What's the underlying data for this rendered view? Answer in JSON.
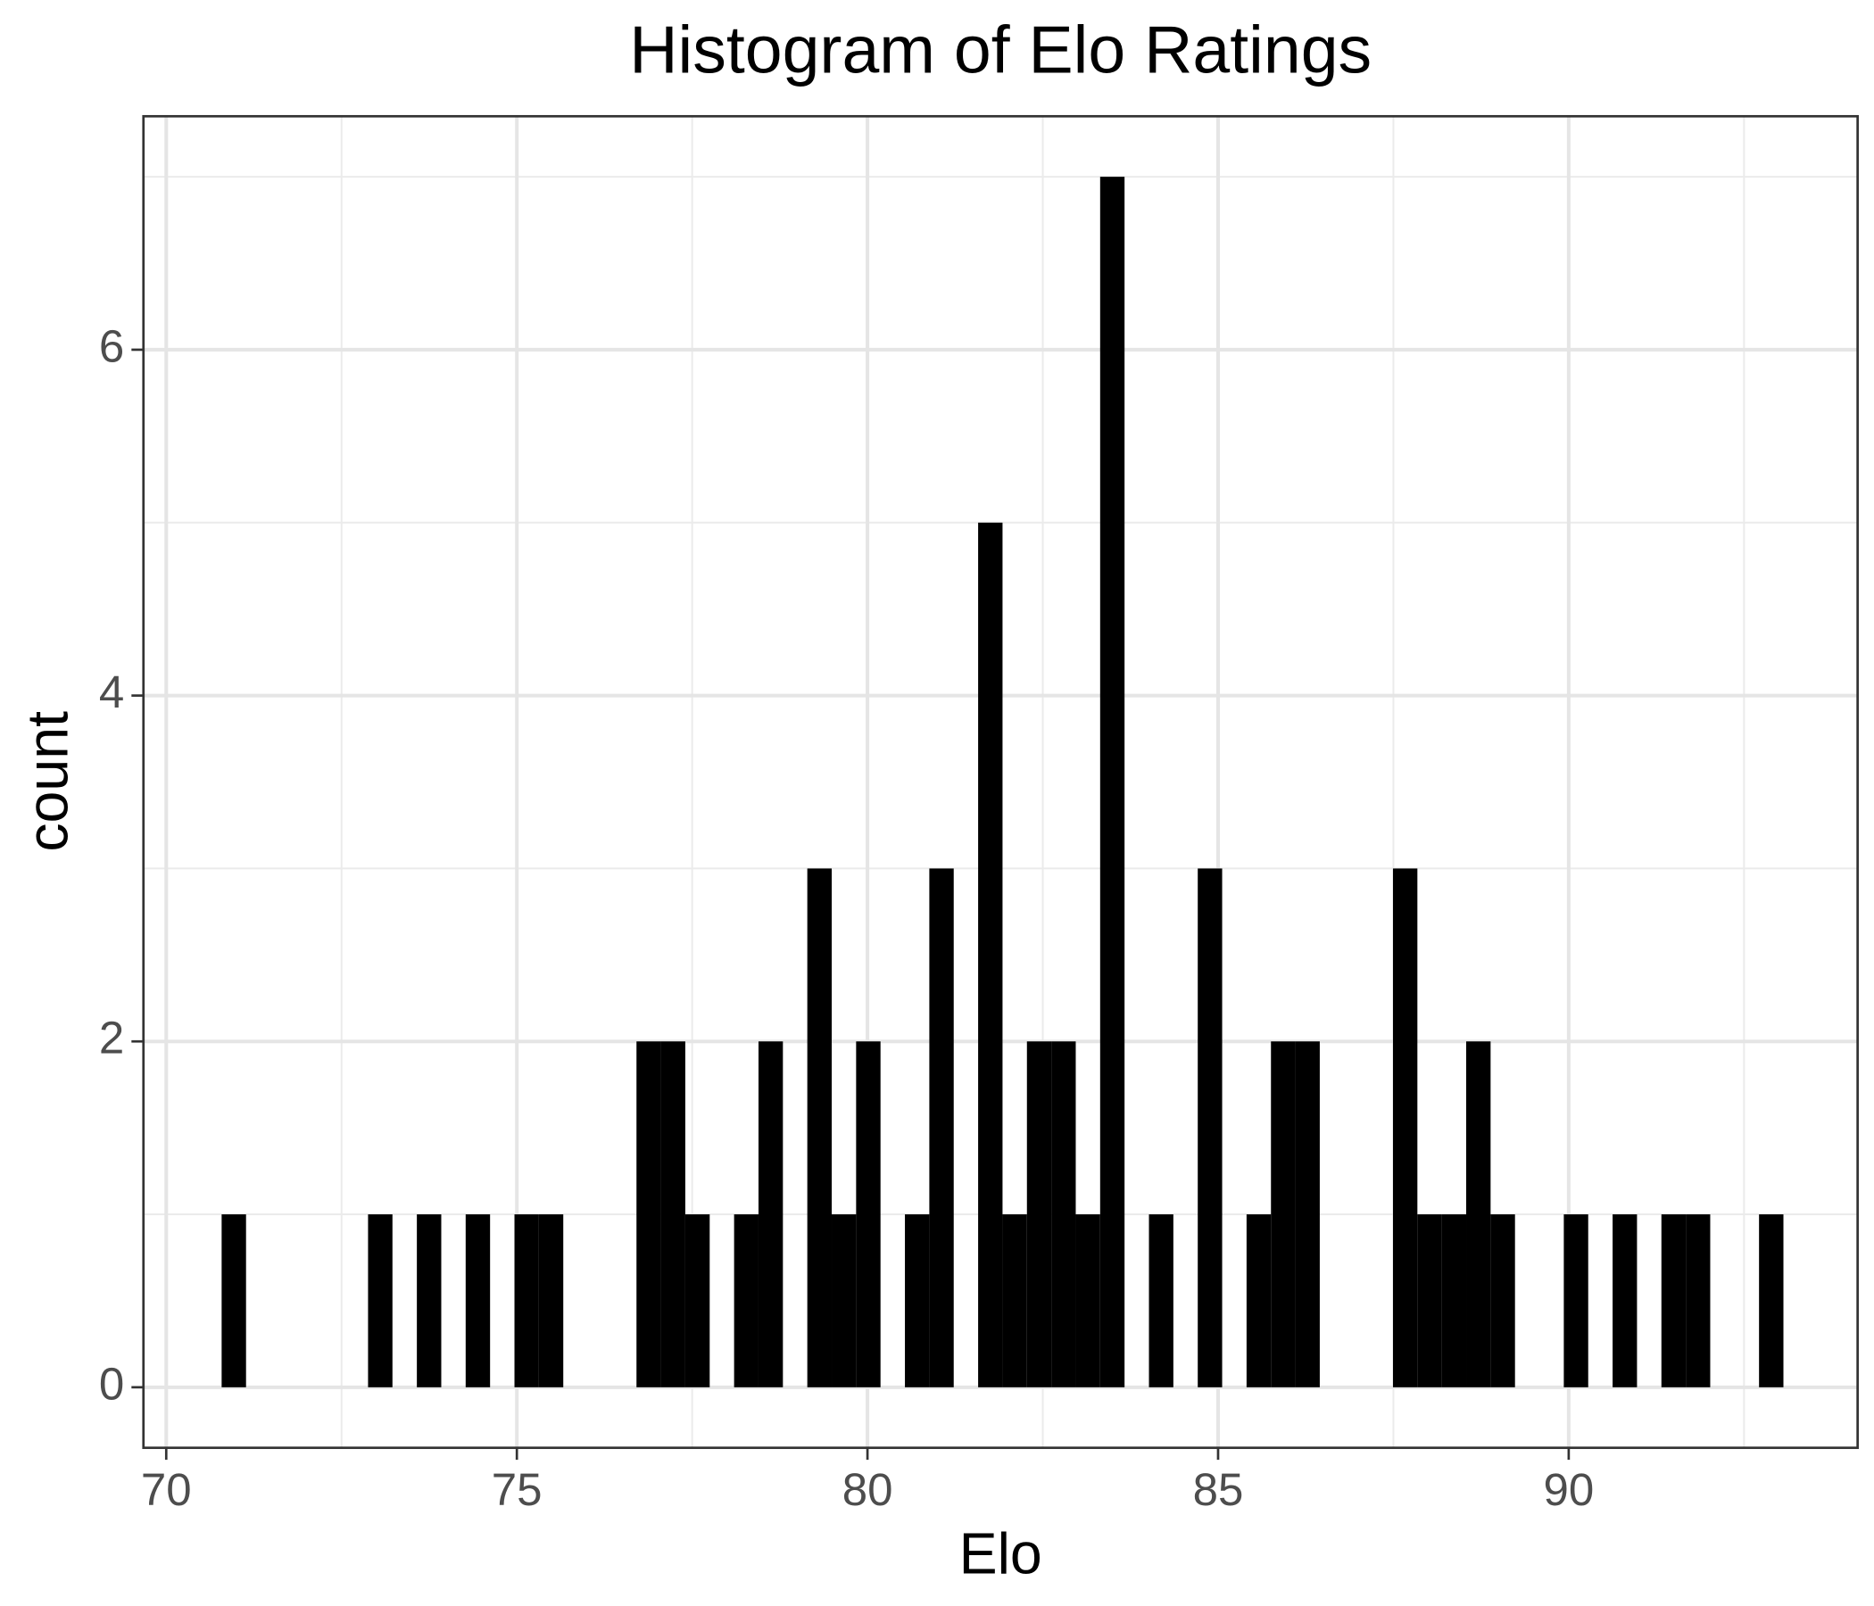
{
  "chart_data": {
    "type": "histogram",
    "title": "Histogram of Elo Ratings",
    "x_label": "Elo",
    "y_label": "count",
    "bins": [
      70.79,
      71.138,
      71.486,
      71.834,
      72.182,
      72.53,
      72.878,
      73.226,
      73.574,
      73.922,
      74.27,
      74.618,
      74.966,
      75.314,
      75.662,
      76.01,
      76.358,
      76.706,
      77.054,
      77.402,
      77.75,
      78.098,
      78.446,
      78.794,
      79.142,
      79.49,
      79.838,
      80.186,
      80.534,
      80.882,
      81.23,
      81.578,
      81.926,
      82.274,
      82.622,
      82.97,
      83.318,
      83.666,
      84.014,
      84.362,
      84.71,
      85.058,
      85.406,
      85.754,
      86.102,
      86.45,
      86.798,
      87.146,
      87.494,
      87.842,
      88.19,
      88.538,
      88.886,
      89.234,
      89.582,
      89.93,
      90.278,
      90.626,
      90.974,
      91.322,
      91.67,
      92.018,
      92.366,
      92.714,
      93.062
    ],
    "values": [
      1,
      0,
      0,
      0,
      0,
      0,
      1,
      0,
      1,
      0,
      1,
      0,
      1,
      1,
      0,
      0,
      0,
      2,
      2,
      1,
      0,
      1,
      2,
      0,
      3,
      1,
      2,
      0,
      1,
      3,
      0,
      5,
      1,
      2,
      2,
      1,
      7,
      0,
      1,
      0,
      3,
      0,
      1,
      2,
      2,
      0,
      0,
      0,
      3,
      1,
      1,
      2,
      1,
      0,
      0,
      1,
      0,
      1,
      0,
      1,
      1,
      0,
      0,
      1
    ],
    "color": "#000000",
    "xlim": [
      69.675,
      94.12
    ],
    "xticks": [
      70,
      75,
      80,
      85,
      90
    ],
    "xminorticks": [
      72.5,
      77.5,
      82.5,
      87.5,
      92.5
    ],
    "ylim": [
      -0.35,
      7.35
    ],
    "yticks": [
      0,
      2,
      4,
      6
    ],
    "yminorticks": [
      1,
      3,
      5,
      7
    ],
    "grid": true
  }
}
